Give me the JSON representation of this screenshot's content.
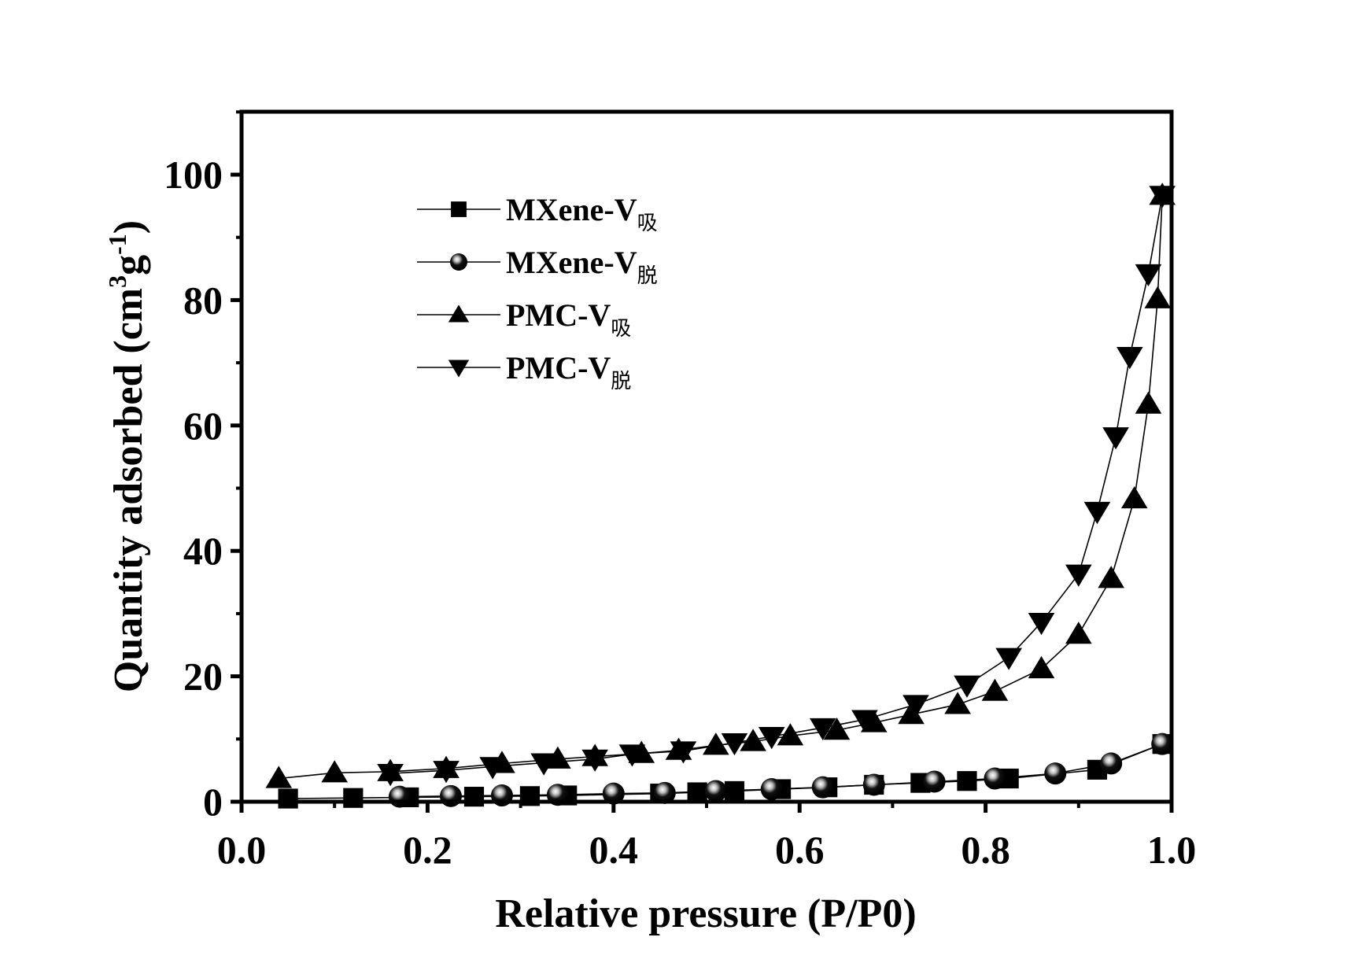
{
  "chart_data": {
    "type": "scatter",
    "title": "",
    "xlabel": "Relative pressure (P/P0)",
    "ylabel": "Quantity adsorbed (cm3g-1)",
    "ylabel_parts": {
      "main": "Quantity adsorbed (cm",
      "sup1": "3",
      "mid": "g",
      "sup2": "-1",
      "end": ")"
    },
    "xlim": [
      0.0,
      1.0
    ],
    "ylim": [
      0,
      110
    ],
    "x_ticks": [
      "0.0",
      "0.2",
      "0.4",
      "0.6",
      "0.8",
      "1.0"
    ],
    "x_tick_values": [
      0.0,
      0.2,
      0.4,
      0.6,
      0.8,
      1.0
    ],
    "y_ticks": [
      "0",
      "20",
      "40",
      "60",
      "80",
      "100"
    ],
    "y_tick_values": [
      0,
      20,
      40,
      60,
      80,
      100
    ],
    "grid": false,
    "legend_position": "top-left",
    "series": [
      {
        "name": "MXene-V吸",
        "label": "MXene-V",
        "subscript": "吸",
        "marker": "square",
        "color": "#000000",
        "x": [
          0.05,
          0.12,
          0.18,
          0.25,
          0.31,
          0.35,
          0.45,
          0.49,
          0.53,
          0.58,
          0.63,
          0.68,
          0.73,
          0.78,
          0.825,
          0.92,
          0.99
        ],
        "y": [
          0.5,
          0.6,
          0.7,
          0.8,
          0.9,
          1.0,
          1.3,
          1.5,
          1.7,
          2.0,
          2.3,
          2.7,
          3.0,
          3.3,
          3.7,
          5.1,
          9.2
        ]
      },
      {
        "name": "MXene-V脱",
        "label": "MXene-V",
        "subscript": "脱",
        "marker": "sphere",
        "color": "#000000",
        "x": [
          0.99,
          0.935,
          0.875,
          0.81,
          0.745,
          0.68,
          0.625,
          0.57,
          0.51,
          0.455,
          0.4,
          0.34,
          0.28,
          0.225,
          0.17
        ],
        "y": [
          9.2,
          6.1,
          4.5,
          3.7,
          3.2,
          2.7,
          2.3,
          2.0,
          1.7,
          1.4,
          1.3,
          1.1,
          1.0,
          0.9,
          0.8
        ]
      },
      {
        "name": "PMC-V吸",
        "label": "PMC-V",
        "subscript": "吸",
        "marker": "triangle-up",
        "color": "#000000",
        "x": [
          0.04,
          0.1,
          0.16,
          0.22,
          0.28,
          0.34,
          0.38,
          0.43,
          0.47,
          0.51,
          0.55,
          0.59,
          0.64,
          0.68,
          0.72,
          0.77,
          0.81,
          0.86,
          0.9,
          0.935,
          0.96,
          0.975,
          0.985,
          0.99
        ],
        "y": [
          3.7,
          4.6,
          4.8,
          5.3,
          6.1,
          6.8,
          7.2,
          7.7,
          8.2,
          9.0,
          9.6,
          10.5,
          11.4,
          12.6,
          13.9,
          15.5,
          17.6,
          21.2,
          26.7,
          35.6,
          48.3,
          63.4,
          80.2,
          96.7
        ]
      },
      {
        "name": "PMC-V脱",
        "label": "PMC-V",
        "subscript": "脱",
        "marker": "triangle-down",
        "color": "#000000",
        "x": [
          0.99,
          0.975,
          0.955,
          0.94,
          0.92,
          0.9,
          0.86,
          0.825,
          0.78,
          0.725,
          0.67,
          0.625,
          0.57,
          0.53,
          0.475,
          0.42,
          0.38,
          0.325,
          0.27,
          0.22,
          0.16
        ],
        "y": [
          96.7,
          84.2,
          71.0,
          58.2,
          46.3,
          36.3,
          28.6,
          23.0,
          18.6,
          15.5,
          13.1,
          11.8,
          10.4,
          9.4,
          8.1,
          7.6,
          6.8,
          6.2,
          5.6,
          5.0,
          4.5
        ]
      }
    ]
  }
}
